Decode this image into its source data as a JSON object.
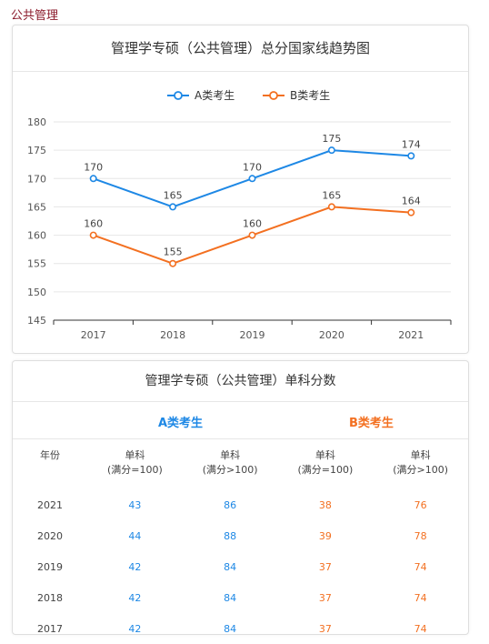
{
  "page_label": "公共管理",
  "chart_card": {
    "title": "管理学专硕（公共管理）总分国家线趋势图"
  },
  "colors": {
    "series_a": "#1e88e5",
    "series_b": "#f37021",
    "grid": "#e6e6e6",
    "label": "#8b1a2b"
  },
  "chart_data": {
    "type": "line",
    "title": "管理学专硕（公共管理）总分国家线趋势图",
    "categories": [
      "2017",
      "2018",
      "2019",
      "2020",
      "2021"
    ],
    "series": [
      {
        "name": "A类考生",
        "values": [
          170,
          165,
          170,
          175,
          174
        ]
      },
      {
        "name": "B类考生",
        "values": [
          160,
          155,
          160,
          165,
          164
        ]
      }
    ],
    "ylim": [
      145,
      180
    ],
    "yticks": [
      145,
      150,
      155,
      160,
      165,
      170,
      175,
      180
    ],
    "grid": true,
    "legend": "top-center",
    "xlabel": "",
    "ylabel": ""
  },
  "table_card": {
    "title": "管理学专硕（公共管理）单科分数",
    "group_a": "A类考生",
    "group_b": "B类考生",
    "headers": {
      "year": "年份",
      "col1": [
        "单科",
        "(满分=100)"
      ],
      "col2": [
        "单科",
        "(满分>100)"
      ],
      "col3": [
        "单科",
        "(满分=100)"
      ],
      "col4": [
        "单科",
        "(满分>100)"
      ]
    },
    "rows": [
      {
        "year": "2021",
        "a1": "43",
        "a2": "86",
        "b1": "38",
        "b2": "76"
      },
      {
        "year": "2020",
        "a1": "44",
        "a2": "88",
        "b1": "39",
        "b2": "78"
      },
      {
        "year": "2019",
        "a1": "42",
        "a2": "84",
        "b1": "37",
        "b2": "74"
      },
      {
        "year": "2018",
        "a1": "42",
        "a2": "84",
        "b1": "37",
        "b2": "74"
      },
      {
        "year": "2017",
        "a1": "42",
        "a2": "84",
        "b1": "37",
        "b2": "74"
      }
    ]
  }
}
